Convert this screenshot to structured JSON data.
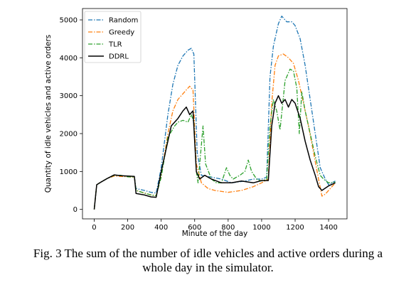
{
  "caption": {
    "line1": "Fig. 3 The sum of the number of idle vehicles and active orders during a",
    "line2": "whole day in the simulator."
  },
  "chart_data": {
    "type": "line",
    "title": "",
    "xlabel": "Minute of the day",
    "ylabel": "Quantity of idle vehicles and active orders",
    "xlim": [
      -70,
      1510
    ],
    "ylim": [
      -250,
      5300
    ],
    "xticks": [
      0,
      200,
      400,
      600,
      800,
      1000,
      1200,
      1400
    ],
    "yticks": [
      0,
      1000,
      2000,
      3000,
      4000,
      5000
    ],
    "grid": false,
    "legend_position": "top-left",
    "series": [
      {
        "name": "Random",
        "color": "#1f77b4",
        "dash": "dashdot",
        "points": [
          [
            0,
            0
          ],
          [
            15,
            650
          ],
          [
            40,
            720
          ],
          [
            80,
            820
          ],
          [
            120,
            900
          ],
          [
            160,
            880
          ],
          [
            200,
            870
          ],
          [
            240,
            860
          ],
          [
            250,
            550
          ],
          [
            300,
            500
          ],
          [
            340,
            450
          ],
          [
            370,
            430
          ],
          [
            400,
            1100
          ],
          [
            440,
            2500
          ],
          [
            470,
            3300
          ],
          [
            500,
            3800
          ],
          [
            530,
            4050
          ],
          [
            560,
            4200
          ],
          [
            580,
            4250
          ],
          [
            595,
            4100
          ],
          [
            615,
            1500
          ],
          [
            640,
            900
          ],
          [
            700,
            850
          ],
          [
            760,
            800
          ],
          [
            820,
            700
          ],
          [
            900,
            750
          ],
          [
            950,
            800
          ],
          [
            1000,
            800
          ],
          [
            1030,
            850
          ],
          [
            1050,
            3500
          ],
          [
            1070,
            4300
          ],
          [
            1100,
            4900
          ],
          [
            1120,
            5100
          ],
          [
            1150,
            4950
          ],
          [
            1180,
            4950
          ],
          [
            1200,
            4850
          ],
          [
            1230,
            4500
          ],
          [
            1260,
            3800
          ],
          [
            1290,
            2900
          ],
          [
            1320,
            2000
          ],
          [
            1350,
            1100
          ],
          [
            1380,
            800
          ],
          [
            1400,
            650
          ],
          [
            1440,
            750
          ]
        ]
      },
      {
        "name": "Greedy",
        "color": "#ff7f0e",
        "dash": "dashdot",
        "points": [
          [
            0,
            0
          ],
          [
            15,
            650
          ],
          [
            40,
            720
          ],
          [
            80,
            820
          ],
          [
            120,
            880
          ],
          [
            160,
            870
          ],
          [
            200,
            860
          ],
          [
            240,
            850
          ],
          [
            250,
            500
          ],
          [
            300,
            430
          ],
          [
            340,
            380
          ],
          [
            370,
            360
          ],
          [
            400,
            900
          ],
          [
            440,
            2000
          ],
          [
            470,
            2600
          ],
          [
            500,
            2900
          ],
          [
            540,
            3100
          ],
          [
            570,
            3250
          ],
          [
            590,
            3150
          ],
          [
            610,
            1200
          ],
          [
            640,
            700
          ],
          [
            680,
            550
          ],
          [
            720,
            500
          ],
          [
            800,
            450
          ],
          [
            880,
            500
          ],
          [
            950,
            600
          ],
          [
            1000,
            700
          ],
          [
            1040,
            800
          ],
          [
            1060,
            2800
          ],
          [
            1080,
            3800
          ],
          [
            1100,
            4050
          ],
          [
            1130,
            4100
          ],
          [
            1160,
            4000
          ],
          [
            1190,
            3850
          ],
          [
            1220,
            3400
          ],
          [
            1250,
            2800
          ],
          [
            1280,
            2200
          ],
          [
            1310,
            1500
          ],
          [
            1340,
            800
          ],
          [
            1360,
            350
          ],
          [
            1380,
            400
          ],
          [
            1420,
            600
          ],
          [
            1440,
            700
          ]
        ]
      },
      {
        "name": "TLR",
        "color": "#2ca02c",
        "dash": "dashdot",
        "points": [
          [
            0,
            0
          ],
          [
            15,
            650
          ],
          [
            40,
            720
          ],
          [
            80,
            820
          ],
          [
            120,
            900
          ],
          [
            160,
            900
          ],
          [
            200,
            860
          ],
          [
            240,
            850
          ],
          [
            250,
            500
          ],
          [
            300,
            430
          ],
          [
            340,
            380
          ],
          [
            370,
            360
          ],
          [
            400,
            850
          ],
          [
            440,
            1900
          ],
          [
            480,
            2200
          ],
          [
            500,
            2300
          ],
          [
            530,
            2350
          ],
          [
            560,
            2300
          ],
          [
            580,
            2500
          ],
          [
            595,
            2300
          ],
          [
            610,
            1000
          ],
          [
            620,
            700
          ],
          [
            640,
            1700
          ],
          [
            650,
            2200
          ],
          [
            665,
            1200
          ],
          [
            700,
            800
          ],
          [
            730,
            700
          ],
          [
            760,
            700
          ],
          [
            790,
            1100
          ],
          [
            810,
            900
          ],
          [
            830,
            800
          ],
          [
            870,
            900
          ],
          [
            900,
            1000
          ],
          [
            920,
            1300
          ],
          [
            940,
            1000
          ],
          [
            970,
            800
          ],
          [
            1000,
            750
          ],
          [
            1030,
            800
          ],
          [
            1050,
            2200
          ],
          [
            1070,
            2900
          ],
          [
            1090,
            2600
          ],
          [
            1110,
            2100
          ],
          [
            1140,
            3400
          ],
          [
            1170,
            3700
          ],
          [
            1190,
            3650
          ],
          [
            1210,
            3200
          ],
          [
            1225,
            2000
          ],
          [
            1240,
            3100
          ],
          [
            1260,
            2600
          ],
          [
            1290,
            2000
          ],
          [
            1320,
            1400
          ],
          [
            1350,
            900
          ],
          [
            1370,
            800
          ],
          [
            1400,
            700
          ],
          [
            1440,
            720
          ]
        ]
      },
      {
        "name": "DDRL",
        "color": "#000000",
        "dash": "solid",
        "points": [
          [
            0,
            0
          ],
          [
            15,
            650
          ],
          [
            40,
            720
          ],
          [
            80,
            820
          ],
          [
            120,
            910
          ],
          [
            160,
            890
          ],
          [
            200,
            880
          ],
          [
            240,
            870
          ],
          [
            250,
            420
          ],
          [
            300,
            380
          ],
          [
            340,
            330
          ],
          [
            370,
            320
          ],
          [
            400,
            1000
          ],
          [
            430,
            1600
          ],
          [
            460,
            2200
          ],
          [
            480,
            2300
          ],
          [
            500,
            2400
          ],
          [
            530,
            2600
          ],
          [
            550,
            2700
          ],
          [
            570,
            2500
          ],
          [
            590,
            2600
          ],
          [
            610,
            1000
          ],
          [
            630,
            800
          ],
          [
            660,
            900
          ],
          [
            700,
            800
          ],
          [
            760,
            700
          ],
          [
            820,
            700
          ],
          [
            880,
            750
          ],
          [
            950,
            700
          ],
          [
            1000,
            760
          ],
          [
            1040,
            760
          ],
          [
            1060,
            2200
          ],
          [
            1080,
            2800
          ],
          [
            1100,
            3000
          ],
          [
            1120,
            2800
          ],
          [
            1140,
            2900
          ],
          [
            1160,
            2700
          ],
          [
            1180,
            2900
          ],
          [
            1200,
            2800
          ],
          [
            1230,
            2400
          ],
          [
            1260,
            1800
          ],
          [
            1290,
            1300
          ],
          [
            1320,
            900
          ],
          [
            1340,
            600
          ],
          [
            1360,
            500
          ],
          [
            1400,
            620
          ],
          [
            1440,
            700
          ]
        ]
      }
    ]
  }
}
